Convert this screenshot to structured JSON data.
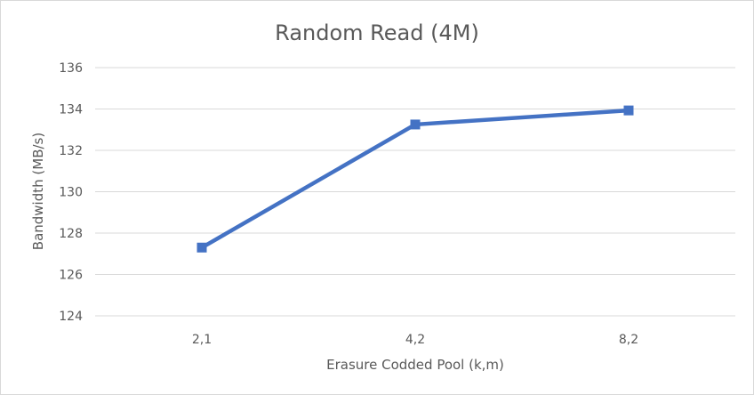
{
  "chart_data": {
    "type": "line",
    "title": "Random Read (4M)",
    "xlabel": "Erasure Codded Pool (k,m)",
    "ylabel": "Bandwidth (MB/s)",
    "categories": [
      "2,1",
      "4,2",
      "8,2"
    ],
    "series": [
      {
        "values": [
          127.3,
          133.25,
          133.93
        ],
        "color": "#4472c4",
        "marker": "square"
      }
    ],
    "ylim": [
      124,
      136
    ],
    "yticks": [
      124,
      126,
      128,
      130,
      132,
      134,
      136
    ],
    "grid": true,
    "legend": "none"
  }
}
